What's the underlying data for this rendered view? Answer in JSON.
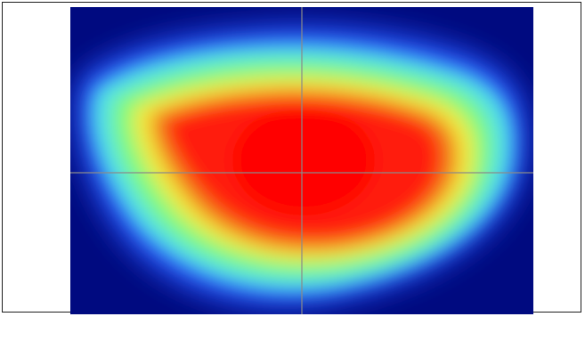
{
  "image": {
    "kind": "beam-profile-heatmap",
    "colormap": [
      "#000a80",
      "#2a5cff",
      "#4fe0e8",
      "#7dfa7d",
      "#f3ea3a",
      "#f07a1e",
      "#ff1a0a"
    ],
    "background_color": "#000a80",
    "peak_color": "#ff0000",
    "crosshair_color": "#8a8a8a",
    "frame_color": "#1e1e1e"
  }
}
